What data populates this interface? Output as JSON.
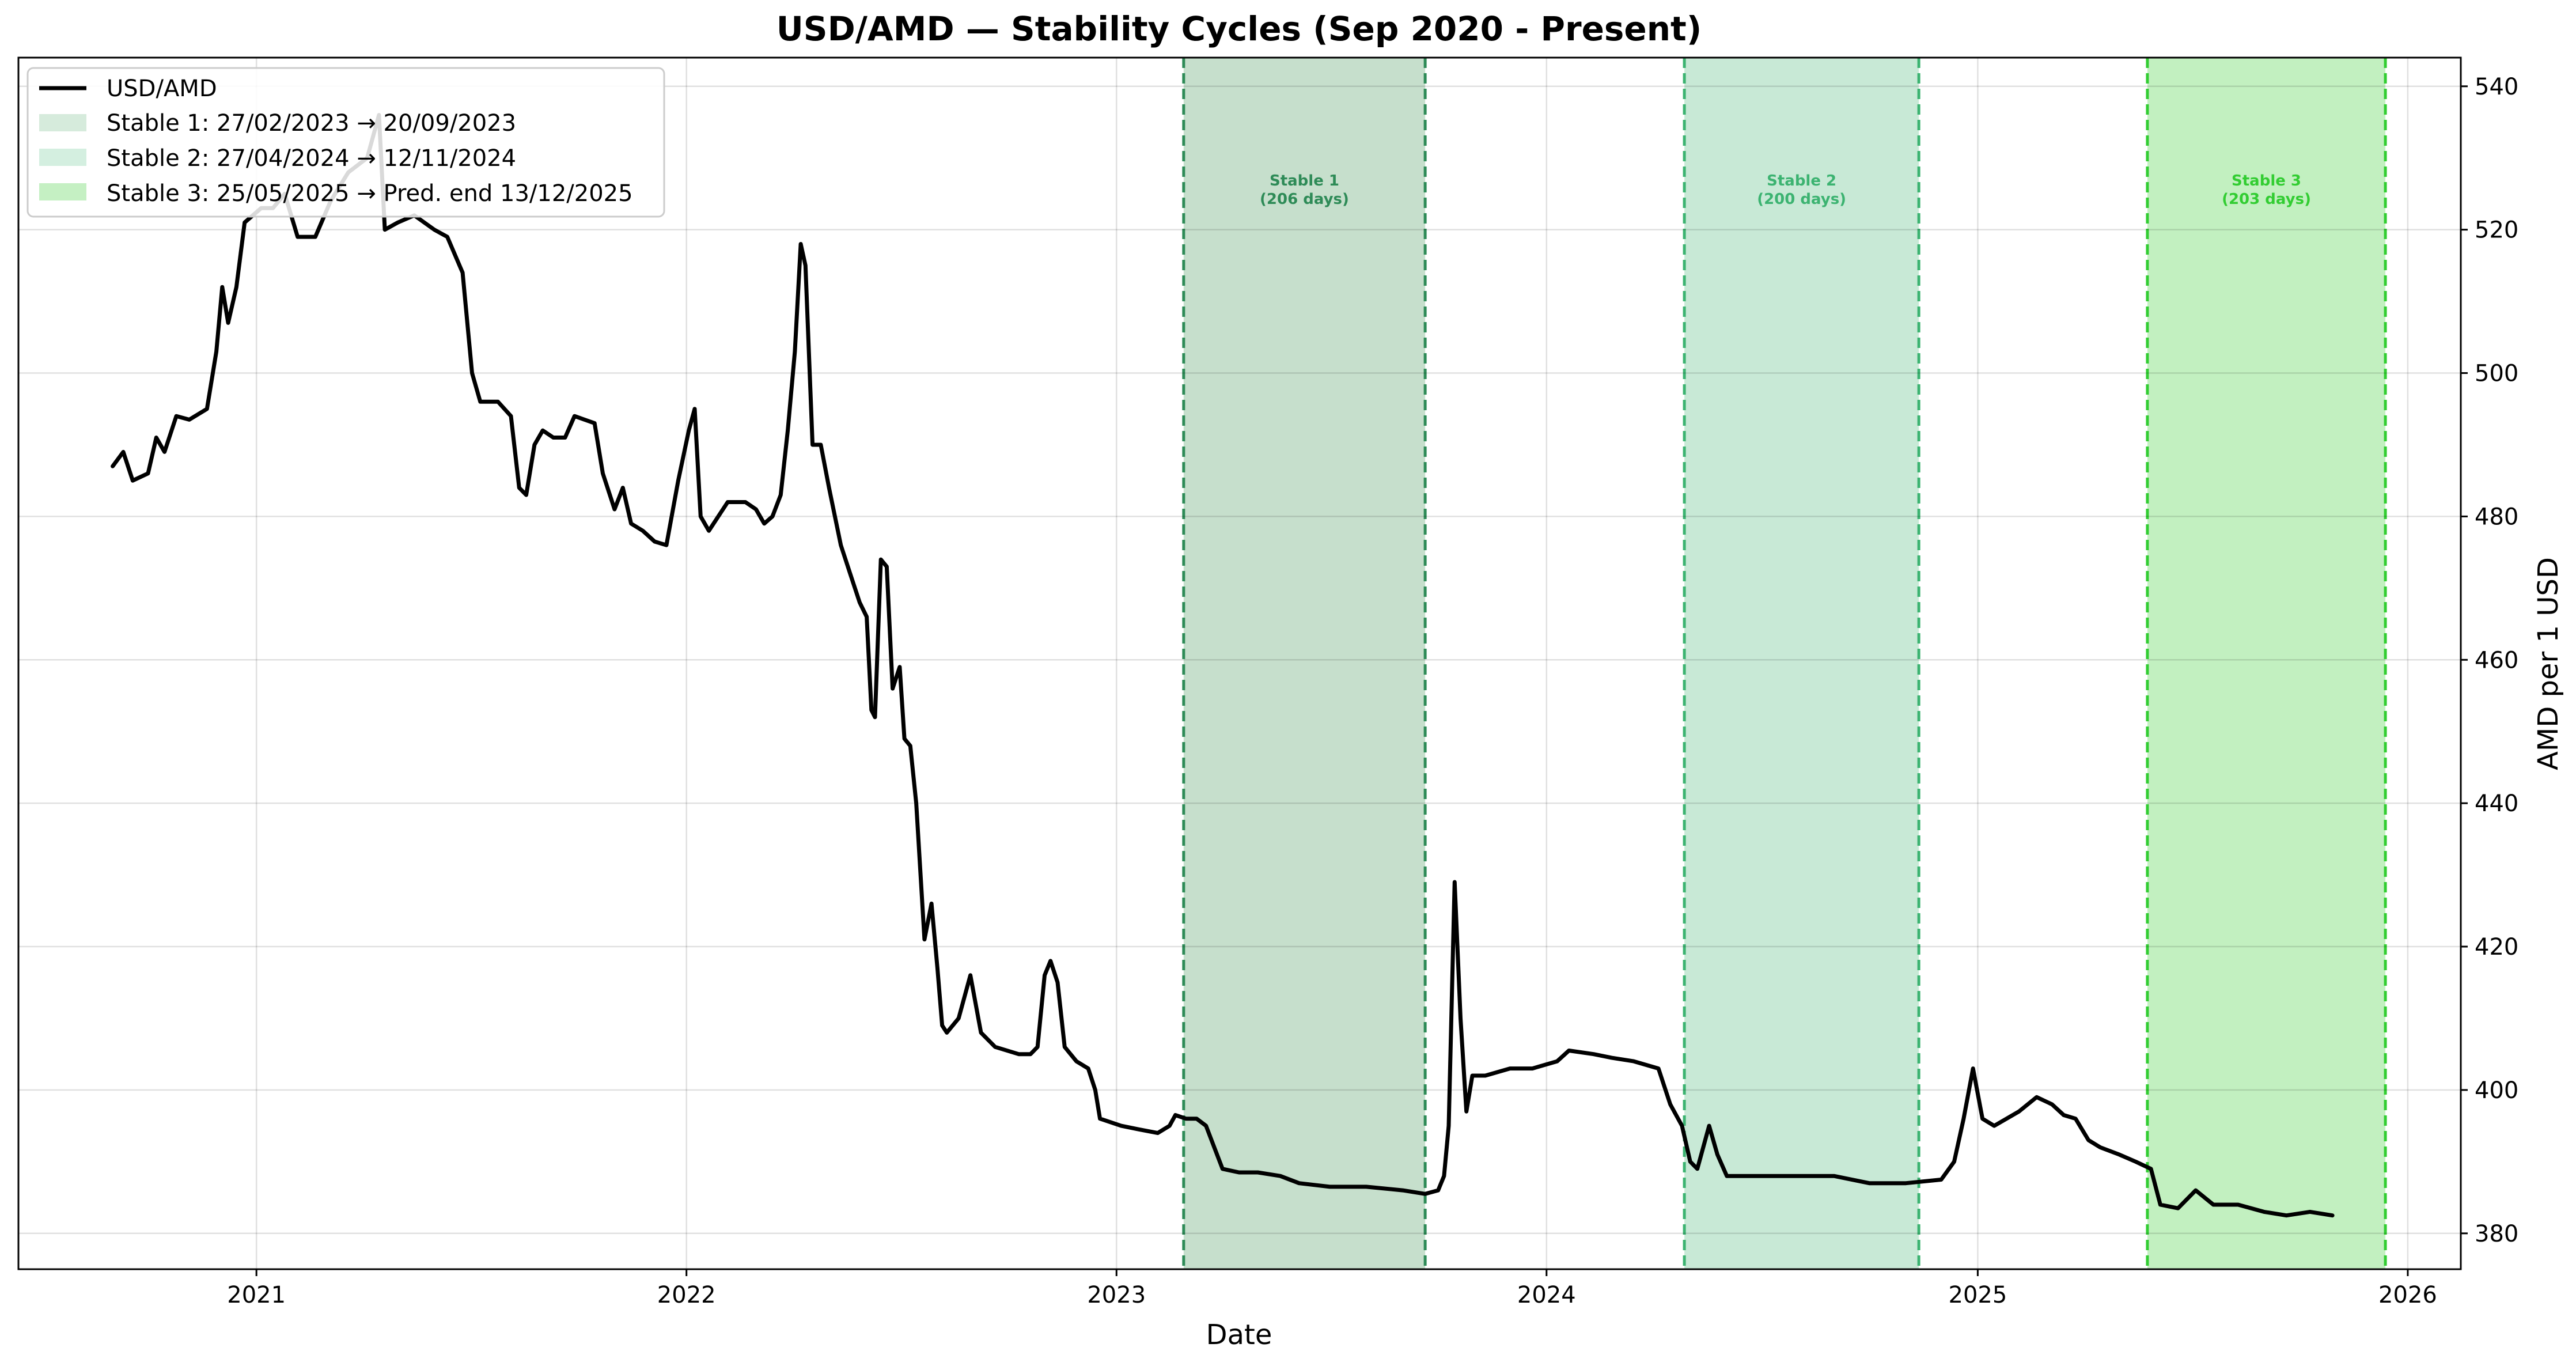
{
  "chart_data": {
    "type": "line",
    "title": "USD/AMD — Stability Cycles (Sep 2020 - Present)",
    "xlabel": "Date",
    "ylabel": "AMD per 1 USD",
    "y_axis_position": "right",
    "xlim": [
      "2020-06-13",
      "2026-02-15"
    ],
    "ylim": [
      375,
      544
    ],
    "x_ticks": [
      {
        "date": "2021-01-01",
        "label": "2021"
      },
      {
        "date": "2022-01-01",
        "label": "2022"
      },
      {
        "date": "2023-01-01",
        "label": "2023"
      },
      {
        "date": "2024-01-01",
        "label": "2024"
      },
      {
        "date": "2025-01-01",
        "label": "2025"
      },
      {
        "date": "2026-01-01",
        "label": "2026"
      }
    ],
    "y_ticks": [
      380,
      400,
      420,
      440,
      460,
      480,
      500,
      520,
      540
    ],
    "grid": true,
    "legend_position": "top-left",
    "series": [
      {
        "name": "USD/AMD",
        "color": "#000000",
        "points": [
          [
            "2020-09-01",
            487
          ],
          [
            "2020-09-10",
            489
          ],
          [
            "2020-09-18",
            485
          ],
          [
            "2020-10-01",
            486
          ],
          [
            "2020-10-08",
            491
          ],
          [
            "2020-10-15",
            489
          ],
          [
            "2020-10-25",
            494
          ],
          [
            "2020-11-05",
            493.5
          ],
          [
            "2020-11-20",
            495
          ],
          [
            "2020-11-28",
            503
          ],
          [
            "2020-12-03",
            512
          ],
          [
            "2020-12-08",
            507
          ],
          [
            "2020-12-15",
            512
          ],
          [
            "2020-12-22",
            521
          ],
          [
            "2021-01-05",
            523
          ],
          [
            "2021-01-15",
            523
          ],
          [
            "2021-01-25",
            525
          ],
          [
            "2021-02-05",
            519
          ],
          [
            "2021-02-20",
            519
          ],
          [
            "2021-03-05",
            524
          ],
          [
            "2021-03-20",
            528
          ],
          [
            "2021-04-05",
            530
          ],
          [
            "2021-04-15",
            536
          ],
          [
            "2021-04-20",
            520
          ],
          [
            "2021-05-01",
            521
          ],
          [
            "2021-05-15",
            522
          ],
          [
            "2021-06-01",
            520
          ],
          [
            "2021-06-12",
            519
          ],
          [
            "2021-06-25",
            514
          ],
          [
            "2021-07-03",
            500
          ],
          [
            "2021-07-10",
            496
          ],
          [
            "2021-07-25",
            496
          ],
          [
            "2021-08-05",
            494
          ],
          [
            "2021-08-12",
            484
          ],
          [
            "2021-08-18",
            483
          ],
          [
            "2021-08-25",
            490
          ],
          [
            "2021-09-01",
            492
          ],
          [
            "2021-09-10",
            491
          ],
          [
            "2021-09-20",
            491
          ],
          [
            "2021-09-28",
            494
          ],
          [
            "2021-10-15",
            493
          ],
          [
            "2021-10-22",
            486
          ],
          [
            "2021-11-01",
            481
          ],
          [
            "2021-11-08",
            484
          ],
          [
            "2021-11-15",
            479
          ],
          [
            "2021-11-25",
            478
          ],
          [
            "2021-12-05",
            476.5
          ],
          [
            "2021-12-15",
            476
          ],
          [
            "2021-12-25",
            485
          ],
          [
            "2022-01-03",
            492
          ],
          [
            "2022-01-08",
            495
          ],
          [
            "2022-01-13",
            480
          ],
          [
            "2022-01-20",
            478
          ],
          [
            "2022-01-28",
            480
          ],
          [
            "2022-02-05",
            482
          ],
          [
            "2022-02-20",
            482
          ],
          [
            "2022-03-01",
            481
          ],
          [
            "2022-03-08",
            479
          ],
          [
            "2022-03-15",
            480
          ],
          [
            "2022-03-22",
            483
          ],
          [
            "2022-03-28",
            492
          ],
          [
            "2022-04-03",
            503
          ],
          [
            "2022-04-08",
            518
          ],
          [
            "2022-04-12",
            515
          ],
          [
            "2022-04-18",
            490
          ],
          [
            "2022-04-25",
            490
          ],
          [
            "2022-05-02",
            484
          ],
          [
            "2022-05-12",
            476
          ],
          [
            "2022-05-20",
            472
          ],
          [
            "2022-05-28",
            468
          ],
          [
            "2022-06-03",
            466
          ],
          [
            "2022-06-07",
            453
          ],
          [
            "2022-06-10",
            452
          ],
          [
            "2022-06-15",
            474
          ],
          [
            "2022-06-20",
            473
          ],
          [
            "2022-06-25",
            456
          ],
          [
            "2022-07-01",
            459
          ],
          [
            "2022-07-05",
            449
          ],
          [
            "2022-07-10",
            448
          ],
          [
            "2022-07-15",
            440
          ],
          [
            "2022-07-22",
            421
          ],
          [
            "2022-07-28",
            426
          ],
          [
            "2022-08-02",
            417
          ],
          [
            "2022-08-06",
            409
          ],
          [
            "2022-08-10",
            408
          ],
          [
            "2022-08-20",
            410
          ],
          [
            "2022-08-30",
            416
          ],
          [
            "2022-09-08",
            408
          ],
          [
            "2022-09-20",
            406
          ],
          [
            "2022-10-10",
            405
          ],
          [
            "2022-10-20",
            405
          ],
          [
            "2022-10-26",
            406
          ],
          [
            "2022-11-01",
            416
          ],
          [
            "2022-11-06",
            418
          ],
          [
            "2022-11-12",
            415
          ],
          [
            "2022-11-18",
            406
          ],
          [
            "2022-11-28",
            404
          ],
          [
            "2022-12-08",
            403
          ],
          [
            "2022-12-14",
            400
          ],
          [
            "2022-12-18",
            396
          ],
          [
            "2023-01-05",
            395
          ],
          [
            "2023-01-20",
            394.5
          ],
          [
            "2023-02-05",
            394
          ],
          [
            "2023-02-15",
            395
          ],
          [
            "2023-02-20",
            396.5
          ],
          [
            "2023-03-01",
            396
          ],
          [
            "2023-03-10",
            396
          ],
          [
            "2023-03-18",
            395
          ],
          [
            "2023-03-25",
            392
          ],
          [
            "2023-04-01",
            389
          ],
          [
            "2023-04-15",
            388.5
          ],
          [
            "2023-05-01",
            388.5
          ],
          [
            "2023-05-20",
            388
          ],
          [
            "2023-06-05",
            387
          ],
          [
            "2023-07-01",
            386.5
          ],
          [
            "2023-08-01",
            386.5
          ],
          [
            "2023-09-01",
            386
          ],
          [
            "2023-09-20",
            385.5
          ],
          [
            "2023-10-01",
            386
          ],
          [
            "2023-10-06",
            388
          ],
          [
            "2023-10-10",
            395
          ],
          [
            "2023-10-15",
            429
          ],
          [
            "2023-10-20",
            410
          ],
          [
            "2023-10-25",
            397
          ],
          [
            "2023-10-30",
            402
          ],
          [
            "2023-11-10",
            402
          ],
          [
            "2023-12-01",
            403
          ],
          [
            "2023-12-20",
            403
          ],
          [
            "2024-01-10",
            404
          ],
          [
            "2024-01-20",
            405.5
          ],
          [
            "2024-02-10",
            405
          ],
          [
            "2024-02-25",
            404.5
          ],
          [
            "2024-03-15",
            404
          ],
          [
            "2024-04-05",
            403
          ],
          [
            "2024-04-15",
            398
          ],
          [
            "2024-04-25",
            395
          ],
          [
            "2024-05-02",
            390
          ],
          [
            "2024-05-08",
            389
          ],
          [
            "2024-05-18",
            395
          ],
          [
            "2024-05-25",
            391
          ],
          [
            "2024-06-02",
            388
          ],
          [
            "2024-07-01",
            388
          ],
          [
            "2024-08-01",
            388
          ],
          [
            "2024-09-01",
            388
          ],
          [
            "2024-10-01",
            387
          ],
          [
            "2024-11-01",
            387
          ],
          [
            "2024-12-01",
            387.5
          ],
          [
            "2024-12-12",
            390
          ],
          [
            "2024-12-20",
            396
          ],
          [
            "2024-12-28",
            403
          ],
          [
            "2025-01-05",
            396
          ],
          [
            "2025-01-15",
            395
          ],
          [
            "2025-02-05",
            397
          ],
          [
            "2025-02-20",
            399
          ],
          [
            "2025-03-05",
            398
          ],
          [
            "2025-03-15",
            396.5
          ],
          [
            "2025-03-25",
            396
          ],
          [
            "2025-04-05",
            393
          ],
          [
            "2025-04-15",
            392
          ],
          [
            "2025-05-01",
            391
          ],
          [
            "2025-05-15",
            390
          ],
          [
            "2025-05-28",
            389
          ],
          [
            "2025-06-05",
            384
          ],
          [
            "2025-06-20",
            383.5
          ],
          [
            "2025-07-05",
            386
          ],
          [
            "2025-07-20",
            384
          ],
          [
            "2025-08-10",
            384
          ],
          [
            "2025-09-01",
            383
          ],
          [
            "2025-09-20",
            382.5
          ],
          [
            "2025-10-10",
            383
          ],
          [
            "2025-10-29",
            382.5
          ]
        ]
      }
    ],
    "stable_periods": [
      {
        "legend": "Stable 1: 27/02/2023 → 20/09/2023",
        "start": "2023-02-27",
        "end": "2023-09-20",
        "label_line1": "Stable 1",
        "label_line2": "(206 days)",
        "fill": "#c6dfcc",
        "edge": "#2e8b57",
        "text_color": "#2e8b57"
      },
      {
        "legend": "Stable 2: 27/04/2024 → 12/11/2024",
        "start": "2024-04-27",
        "end": "2024-11-12",
        "label_line1": "Stable 2",
        "label_line2": "(200 days)",
        "fill": "#c8e9d6",
        "edge": "#3cb371",
        "text_color": "#3cb371"
      },
      {
        "legend": "Stable 3: 25/05/2025 → Pred. end 13/12/2025",
        "start": "2025-05-25",
        "end": "2025-12-13",
        "label_line1": "Stable 3",
        "label_line2": "(203 days)",
        "fill": "#c2f0c0",
        "edge": "#32cd32",
        "text_color": "#32cd32"
      }
    ]
  }
}
